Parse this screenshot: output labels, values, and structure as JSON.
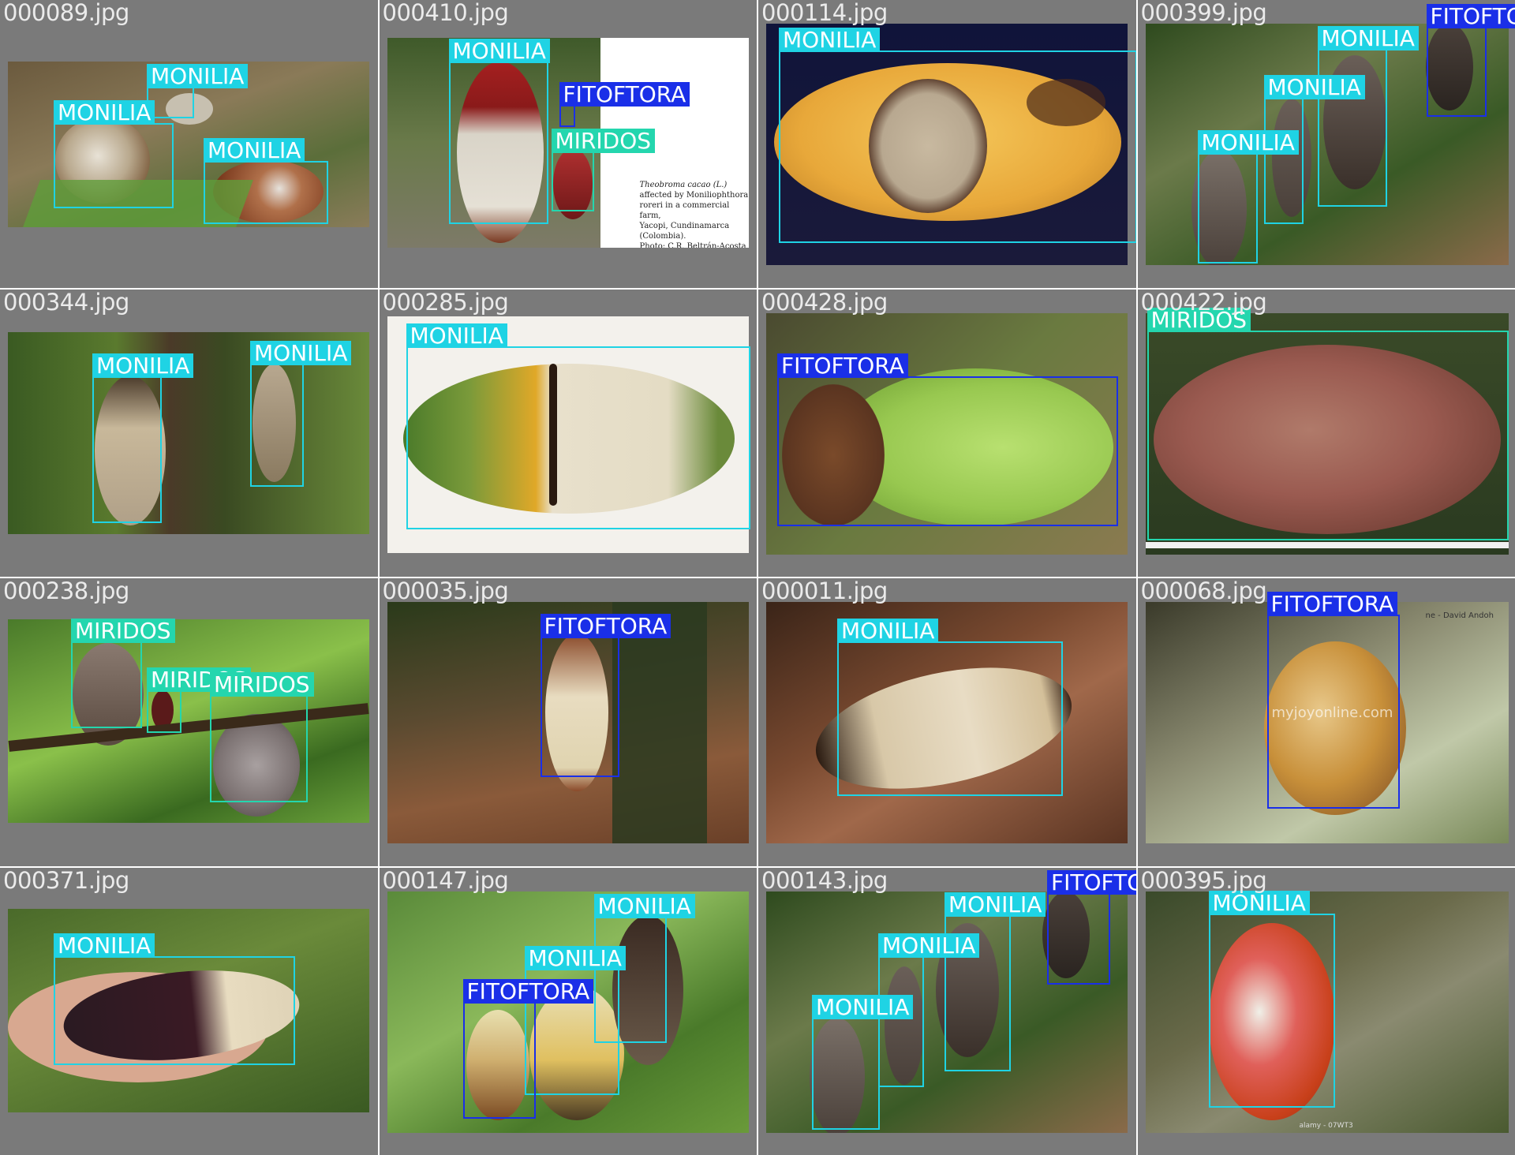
{
  "colors": {
    "monilia": "#1fd3e4",
    "fitoftora": "#1a2fe8",
    "miridos": "#24d6ae",
    "tile_bg": "#7a7a7a",
    "filename_text": "#ebebeb"
  },
  "tiles": [
    {
      "filename": "000089.jpg",
      "detections": [
        "MONILIA",
        "MONILIA",
        "MONILIA"
      ]
    },
    {
      "filename": "000410.jpg",
      "detections": [
        "MONILIA",
        "FITOFTORA",
        "MIRIDOS"
      ],
      "caption": [
        "Theobroma cacao (L.)",
        "affected by Moniliophthora",
        "roreri in a commercial farm,",
        "Yacopi, Cundinamarca",
        "(Colombia).",
        "Photo: C.R. Beltrán-Acosta"
      ]
    },
    {
      "filename": "000114.jpg",
      "detections": [
        "MONILIA"
      ]
    },
    {
      "filename": "000399.jpg",
      "detections": [
        "FITOFTORA",
        "MONILIA",
        "MONILIA",
        "MONILIA"
      ]
    },
    {
      "filename": "000344.jpg",
      "detections": [
        "MONILIA",
        "MONILIA"
      ]
    },
    {
      "filename": "000285.jpg",
      "detections": [
        "MONILIA"
      ]
    },
    {
      "filename": "000428.jpg",
      "detections": [
        "FITOFTORA"
      ]
    },
    {
      "filename": "000422.jpg",
      "detections": [
        "MIRIDOS"
      ]
    },
    {
      "filename": "000238.jpg",
      "detections": [
        "MIRIDOS",
        "MIRIDOS",
        "MIRIDOS"
      ]
    },
    {
      "filename": "000035.jpg",
      "detections": [
        "FITOFTORA"
      ]
    },
    {
      "filename": "000011.jpg",
      "detections": [
        "MONILIA"
      ]
    },
    {
      "filename": "000068.jpg",
      "detections": [
        "FITOFTORA"
      ],
      "watermark": "myjoyonline.com",
      "credit": "ne - David Andoh"
    },
    {
      "filename": "000371.jpg",
      "detections": [
        "MONILIA"
      ]
    },
    {
      "filename": "000147.jpg",
      "detections": [
        "MONILIA",
        "MONILIA",
        "FITOFTORA"
      ]
    },
    {
      "filename": "000143.jpg",
      "detections": [
        "FITOFTORA",
        "MONILIA",
        "MONILIA",
        "MONILIA"
      ]
    },
    {
      "filename": "000395.jpg",
      "detections": [
        "MONILIA"
      ],
      "watermark": "alamy - 07WT3"
    }
  ]
}
